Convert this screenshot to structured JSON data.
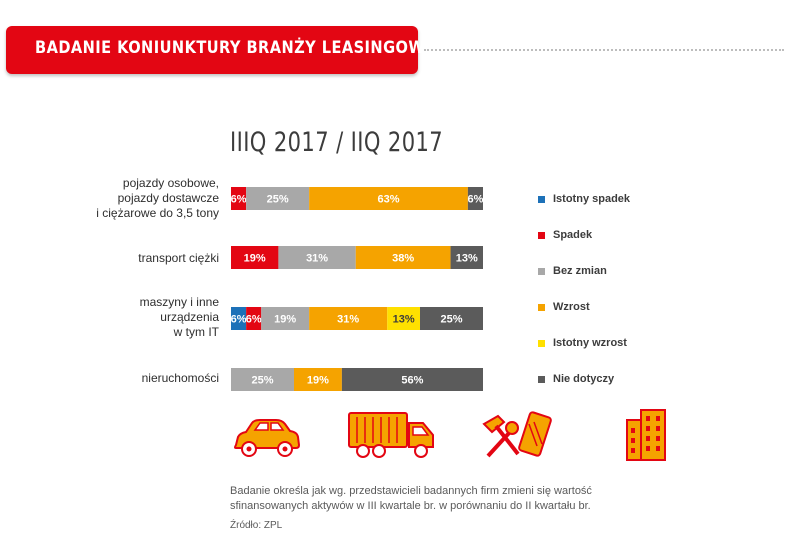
{
  "header": {
    "title": "BADANIE KONIUNKTURY BRANŻY LEASINGOWEJ"
  },
  "chart_data": {
    "type": "bar",
    "stacked": true,
    "orientation": "horizontal",
    "title": "IIIQ 2017 / IIQ 2017",
    "categories": [
      [
        "pojazdy osobowe,",
        "pojazdy dostawcze",
        "i ciężarowe do 3,5 tony"
      ],
      [
        "transport ciężki"
      ],
      [
        "maszyny i inne",
        "urządzenia",
        "w tym IT"
      ],
      [
        "nieruchomości"
      ]
    ],
    "series": [
      {
        "name": "Istotny spadek",
        "color": "#1d71b8",
        "values": [
          0,
          0,
          6,
          0
        ]
      },
      {
        "name": "Spadek",
        "color": "#e30613",
        "values": [
          6,
          19,
          6,
          0
        ]
      },
      {
        "name": "Bez zmian",
        "color": "#a8a8a8",
        "values": [
          25,
          31,
          19,
          25
        ]
      },
      {
        "name": "Wzrost",
        "color": "#f5a300",
        "values": [
          63,
          38,
          31,
          19
        ]
      },
      {
        "name": "Istotny wzrost",
        "color": "#ffe000",
        "values": [
          0,
          0,
          13,
          0
        ]
      },
      {
        "name": "Nie dotyczy",
        "color": "#5b5b5b",
        "values": [
          6,
          13,
          25,
          56
        ]
      }
    ],
    "unit": "%",
    "xlim": [
      0,
      100
    ]
  },
  "legend": [
    {
      "label": "Istotny spadek",
      "color": "#1d71b8"
    },
    {
      "label": "Spadek",
      "color": "#e30613"
    },
    {
      "label": "Bez zmian",
      "color": "#a8a8a8"
    },
    {
      "label": "Wzrost",
      "color": "#f5a300"
    },
    {
      "label": "Istotny wzrost",
      "color": "#ffe000"
    },
    {
      "label": "Nie dotyczy",
      "color": "#5b5b5b"
    }
  ],
  "icons": [
    "car-icon",
    "truck-icon",
    "tools-icon",
    "building-icon"
  ],
  "footnote": "Badanie określa jak wg. przedstawicieli badannych firm zmieni się wartość sfinansowanych aktywów w III kwartale br. w porównaniu do II kwartału br.",
  "source": "Źródło: ZPL",
  "colors": {
    "accent": "#e30613",
    "icon_fill": "#f5a300",
    "icon_outline": "#e30613"
  }
}
